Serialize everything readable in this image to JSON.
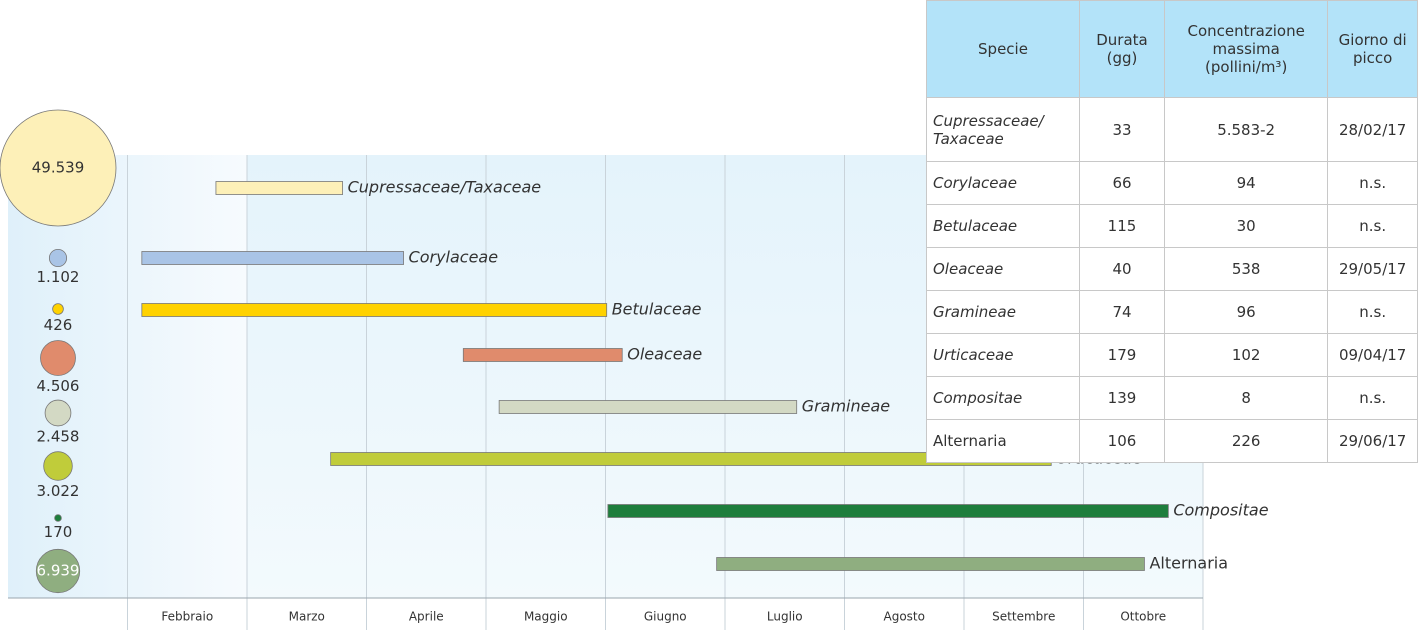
{
  "chart_data": {
    "type": "gantt",
    "categories": [
      null,
      "Febbraio",
      "Marzo",
      "Aprile",
      "Maggio",
      "Giugno",
      "Luglio",
      "Agosto",
      "Settembre",
      "Ottobre"
    ],
    "xlim": [
      0,
      10
    ],
    "xticks": [
      0,
      1,
      2,
      3,
      4,
      5,
      6,
      7,
      8,
      9,
      10
    ],
    "grid": true,
    "series": [
      {
        "name": "Cupressaceae/Taxaceae",
        "italic": true,
        "color": "#fdf0b8",
        "start": 1.74,
        "end": 2.8,
        "value": 49539,
        "value_label": "49.539"
      },
      {
        "name": "Corylaceae",
        "italic": true,
        "color": "#a9c4e6",
        "start": 1.12,
        "end": 3.31,
        "value": 1102,
        "value_label": "1.102"
      },
      {
        "name": "Betulaceae",
        "italic": true,
        "color": "#ffd200",
        "start": 1.12,
        "end": 5.01,
        "value": 426,
        "value_label": "426"
      },
      {
        "name": "Oleaceae",
        "italic": true,
        "color": "#e08b6c",
        "start": 3.81,
        "end": 5.14,
        "value": 4506,
        "value_label": "4.506"
      },
      {
        "name": "Gramineae",
        "italic": true,
        "color": "#d3d9c4",
        "start": 4.11,
        "end": 6.6,
        "value": 2458,
        "value_label": "2.458"
      },
      {
        "name": "Urticaceae",
        "italic": true,
        "color": "#c0cc3a",
        "start": 2.7,
        "end": 8.73,
        "value": 3022,
        "value_label": "3.022"
      },
      {
        "name": "Compositae",
        "italic": true,
        "color": "#1e7e3c",
        "start": 5.02,
        "end": 9.71,
        "value": 170,
        "value_label": "170"
      },
      {
        "name": "Alternaria",
        "italic": false,
        "color": "#8fae80",
        "start": 5.93,
        "end": 9.51,
        "value": 6939,
        "value_label": "6.939"
      }
    ]
  },
  "table": {
    "header": [
      "Specie",
      "Durata (gg)",
      "Concentrazione massima (pollini/m³)",
      "Giorno di picco"
    ],
    "rows": [
      [
        "Cupressaceae/ Taxaceae",
        "33",
        "5.583-2",
        "28/02/17"
      ],
      [
        "Corylaceae",
        "66",
        "94",
        "n.s."
      ],
      [
        "Betulaceae",
        "115",
        "30",
        "n.s."
      ],
      [
        "Oleaceae",
        "40",
        "538",
        "29/05/17"
      ],
      [
        "Gramineae",
        "74",
        "96",
        "n.s."
      ],
      [
        "Urticaceae",
        "179",
        "102",
        "09/04/17"
      ],
      [
        "Compositae",
        "139",
        "8",
        "n.s."
      ],
      [
        "Alternaria",
        "106",
        "226",
        "29/06/17"
      ]
    ]
  }
}
